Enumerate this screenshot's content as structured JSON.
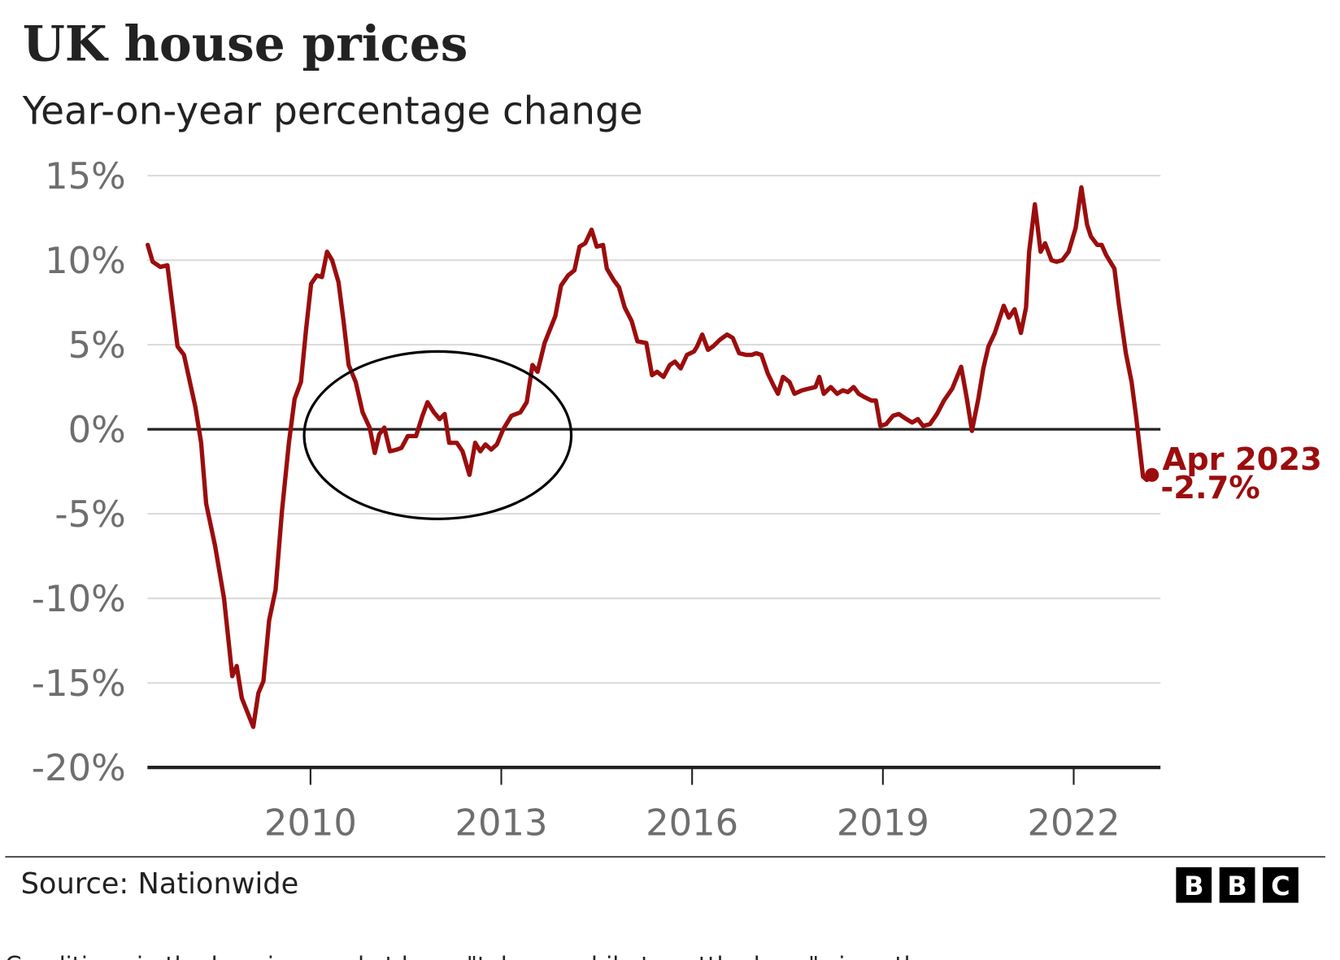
{
  "chart_data": {
    "type": "line",
    "title": "UK house prices",
    "subtitle": "Year-on-year percentage change",
    "xlabel": "",
    "ylabel": "",
    "ylim": [
      -20,
      15
    ],
    "xlim": [
      2007.44,
      2023.23
    ],
    "y_ticks": [
      15,
      10,
      5,
      0,
      -5,
      -10,
      -15,
      -20
    ],
    "y_tick_labels": [
      "15%",
      "10%",
      "5%",
      "0%",
      "-5%",
      "-10%",
      "-15%",
      "-20%"
    ],
    "x_ticks": [
      2010,
      2013,
      2016,
      2019,
      2022
    ],
    "x_tick_labels": [
      "2010",
      "2013",
      "2016",
      "2019",
      "2022"
    ],
    "grid": "horizontal",
    "line_color": "#9b0d0d",
    "annotation": {
      "line1": "Apr 2023",
      "line2": "-2.7%",
      "x": 2023.25,
      "y": -2.7
    },
    "highlight_circle": {
      "x_range": [
        2009.9,
        2014.1
      ],
      "y_range": [
        -5.3,
        4.6
      ],
      "color": "#000000"
    },
    "series": [
      {
        "points": [
          [
            2007.44,
            10.9
          ],
          [
            2007.52,
            9.9
          ],
          [
            2007.64,
            9.6
          ],
          [
            2007.75,
            9.7
          ],
          [
            2007.91,
            4.9
          ],
          [
            2008.01,
            4.4
          ],
          [
            2008.19,
            1.3
          ],
          [
            2008.28,
            -0.8
          ],
          [
            2008.36,
            -4.4
          ],
          [
            2008.5,
            -6.9
          ],
          [
            2008.64,
            -10.0
          ],
          [
            2008.77,
            -14.6
          ],
          [
            2008.84,
            -14.0
          ],
          [
            2008.92,
            -15.9
          ],
          [
            2009.1,
            -17.6
          ],
          [
            2009.18,
            -15.6
          ],
          [
            2009.26,
            -14.9
          ],
          [
            2009.35,
            -11.3
          ],
          [
            2009.45,
            -9.5
          ],
          [
            2009.55,
            -4.9
          ],
          [
            2009.66,
            -0.8
          ],
          [
            2009.75,
            1.8
          ],
          [
            2009.85,
            2.8
          ],
          [
            2009.93,
            5.9
          ],
          [
            2010.01,
            8.6
          ],
          [
            2010.1,
            9.1
          ],
          [
            2010.18,
            9.0
          ],
          [
            2010.26,
            10.5
          ],
          [
            2010.34,
            10.0
          ],
          [
            2010.44,
            8.7
          ],
          [
            2010.52,
            6.4
          ],
          [
            2010.6,
            3.8
          ],
          [
            2010.71,
            2.8
          ],
          [
            2010.82,
            1.0
          ],
          [
            2010.93,
            0.1
          ],
          [
            2011.01,
            -1.4
          ],
          [
            2011.08,
            -0.3
          ],
          [
            2011.16,
            0.1
          ],
          [
            2011.25,
            -1.3
          ],
          [
            2011.36,
            -1.2
          ],
          [
            2011.43,
            -1.1
          ],
          [
            2011.53,
            -0.4
          ],
          [
            2011.66,
            -0.4
          ],
          [
            2011.76,
            0.8
          ],
          [
            2011.84,
            1.6
          ],
          [
            2011.94,
            1.0
          ],
          [
            2012.03,
            0.6
          ],
          [
            2012.11,
            0.9
          ],
          [
            2012.18,
            -0.8
          ],
          [
            2012.3,
            -0.8
          ],
          [
            2012.39,
            -1.3
          ],
          [
            2012.5,
            -2.7
          ],
          [
            2012.59,
            -0.8
          ],
          [
            2012.67,
            -1.3
          ],
          [
            2012.75,
            -0.9
          ],
          [
            2012.84,
            -1.2
          ],
          [
            2012.93,
            -0.9
          ],
          [
            2013.03,
            0.0
          ],
          [
            2013.16,
            0.8
          ],
          [
            2013.3,
            1.0
          ],
          [
            2013.4,
            1.6
          ],
          [
            2013.49,
            3.8
          ],
          [
            2013.57,
            3.4
          ],
          [
            2013.68,
            5.1
          ],
          [
            2013.85,
            6.7
          ],
          [
            2013.94,
            8.5
          ],
          [
            2014.05,
            9.1
          ],
          [
            2014.15,
            9.4
          ],
          [
            2014.23,
            10.8
          ],
          [
            2014.32,
            11.0
          ],
          [
            2014.42,
            11.8
          ],
          [
            2014.5,
            10.8
          ],
          [
            2014.6,
            10.9
          ],
          [
            2014.66,
            9.5
          ],
          [
            2014.77,
            8.8
          ],
          [
            2014.85,
            8.4
          ],
          [
            2014.94,
            7.2
          ],
          [
            2015.05,
            6.4
          ],
          [
            2015.14,
            5.2
          ],
          [
            2015.28,
            5.1
          ],
          [
            2015.37,
            3.2
          ],
          [
            2015.45,
            3.4
          ],
          [
            2015.55,
            3.1
          ],
          [
            2015.65,
            3.8
          ],
          [
            2015.73,
            4.0
          ],
          [
            2015.82,
            3.6
          ],
          [
            2015.92,
            4.4
          ],
          [
            2016.03,
            4.6
          ],
          [
            2016.08,
            4.9
          ],
          [
            2016.16,
            5.6
          ],
          [
            2016.25,
            4.7
          ],
          [
            2016.33,
            4.9
          ],
          [
            2016.44,
            5.3
          ],
          [
            2016.55,
            5.6
          ],
          [
            2016.64,
            5.4
          ],
          [
            2016.74,
            4.5
          ],
          [
            2016.85,
            4.4
          ],
          [
            2016.94,
            4.4
          ],
          [
            2017.01,
            4.5
          ],
          [
            2017.09,
            4.4
          ],
          [
            2017.19,
            3.3
          ],
          [
            2017.28,
            2.6
          ],
          [
            2017.35,
            2.1
          ],
          [
            2017.43,
            3.1
          ],
          [
            2017.53,
            2.8
          ],
          [
            2017.61,
            2.1
          ],
          [
            2017.73,
            2.3
          ],
          [
            2017.83,
            2.4
          ],
          [
            2017.94,
            2.5
          ],
          [
            2018.0,
            3.1
          ],
          [
            2018.07,
            2.1
          ],
          [
            2018.18,
            2.5
          ],
          [
            2018.28,
            2.1
          ],
          [
            2018.37,
            2.3
          ],
          [
            2018.45,
            2.2
          ],
          [
            2018.54,
            2.5
          ],
          [
            2018.62,
            2.1
          ],
          [
            2018.71,
            1.9
          ],
          [
            2018.82,
            1.7
          ],
          [
            2018.89,
            1.7
          ],
          [
            2018.96,
            0.2
          ],
          [
            2019.05,
            0.3
          ],
          [
            2019.16,
            0.8
          ],
          [
            2019.25,
            0.9
          ],
          [
            2019.37,
            0.6
          ],
          [
            2019.46,
            0.4
          ],
          [
            2019.55,
            0.6
          ],
          [
            2019.63,
            0.2
          ],
          [
            2019.74,
            0.3
          ],
          [
            2019.85,
            0.9
          ],
          [
            2019.96,
            1.7
          ],
          [
            2020.09,
            2.4
          ],
          [
            2020.23,
            3.7
          ],
          [
            2020.32,
            1.8
          ],
          [
            2020.4,
            -0.1
          ],
          [
            2020.5,
            1.8
          ],
          [
            2020.58,
            3.6
          ],
          [
            2020.66,
            4.9
          ],
          [
            2020.76,
            5.7
          ],
          [
            2020.9,
            7.3
          ],
          [
            2020.98,
            6.6
          ],
          [
            2021.07,
            7.1
          ],
          [
            2021.17,
            5.7
          ],
          [
            2021.25,
            7.2
          ],
          [
            2021.3,
            10.5
          ],
          [
            2021.39,
            13.3
          ],
          [
            2021.48,
            10.5
          ],
          [
            2021.55,
            11.0
          ],
          [
            2021.65,
            10.0
          ],
          [
            2021.73,
            9.9
          ],
          [
            2021.82,
            10.0
          ],
          [
            2021.92,
            10.5
          ],
          [
            2022.03,
            11.9
          ],
          [
            2022.12,
            14.3
          ],
          [
            2022.21,
            12.1
          ],
          [
            2022.27,
            11.4
          ],
          [
            2022.37,
            10.9
          ],
          [
            2022.44,
            10.9
          ],
          [
            2022.51,
            10.3
          ],
          [
            2022.64,
            9.5
          ],
          [
            2022.71,
            7.4
          ],
          [
            2022.82,
            4.5
          ],
          [
            2022.91,
            2.8
          ],
          [
            2022.98,
            0.8
          ],
          [
            2023.09,
            -2.8
          ],
          [
            2023.15,
            -3.0
          ],
          [
            2023.23,
            -2.7
          ]
        ]
      }
    ],
    "source": "Source: Nationwide"
  },
  "logo": {
    "letters": [
      "B",
      "B",
      "C"
    ],
    "text": "BBC"
  },
  "caption": "Conditions in the housing market have \"taken a while to settle down\" since the"
}
